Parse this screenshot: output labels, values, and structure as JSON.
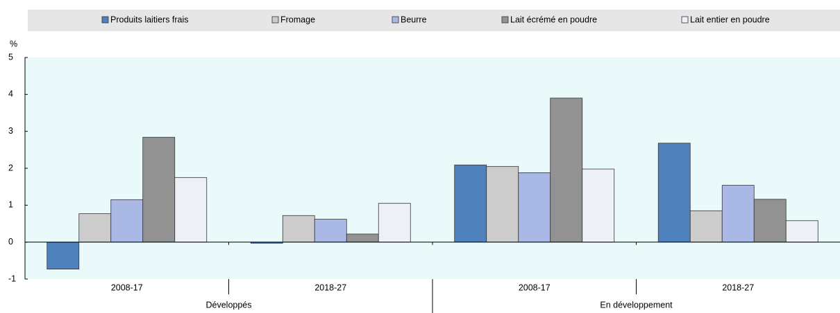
{
  "chart_data": {
    "type": "bar",
    "y_label": "%",
    "groups": [
      {
        "name": "Développés",
        "categories": [
          "2008-17",
          "2018-27"
        ]
      },
      {
        "name": "En développement",
        "categories": [
          "2008-17",
          "2018-27"
        ]
      }
    ],
    "series": [
      {
        "name": "Produits laitiers frais",
        "color": "#4f81bd",
        "values": [
          -0.73,
          -0.03,
          2.09,
          2.68
        ]
      },
      {
        "name": "Fromage",
        "color": "#cccccc",
        "values": [
          0.77,
          0.72,
          2.05,
          0.85
        ]
      },
      {
        "name": "Beurre",
        "color": "#a9b8e4",
        "values": [
          1.15,
          0.62,
          1.88,
          1.54
        ]
      },
      {
        "name": "Lait écrémé en poudre",
        "color": "#929292",
        "values": [
          2.84,
          0.22,
          3.9,
          1.16
        ]
      },
      {
        "name": "Lait entier en poudre",
        "color": "#eef0f8",
        "values": [
          1.75,
          1.05,
          1.98,
          0.58
        ]
      }
    ],
    "ylim": [
      -1,
      5
    ],
    "yticks": [
      -1,
      0,
      1,
      2,
      3,
      4,
      5
    ],
    "grid": false
  }
}
